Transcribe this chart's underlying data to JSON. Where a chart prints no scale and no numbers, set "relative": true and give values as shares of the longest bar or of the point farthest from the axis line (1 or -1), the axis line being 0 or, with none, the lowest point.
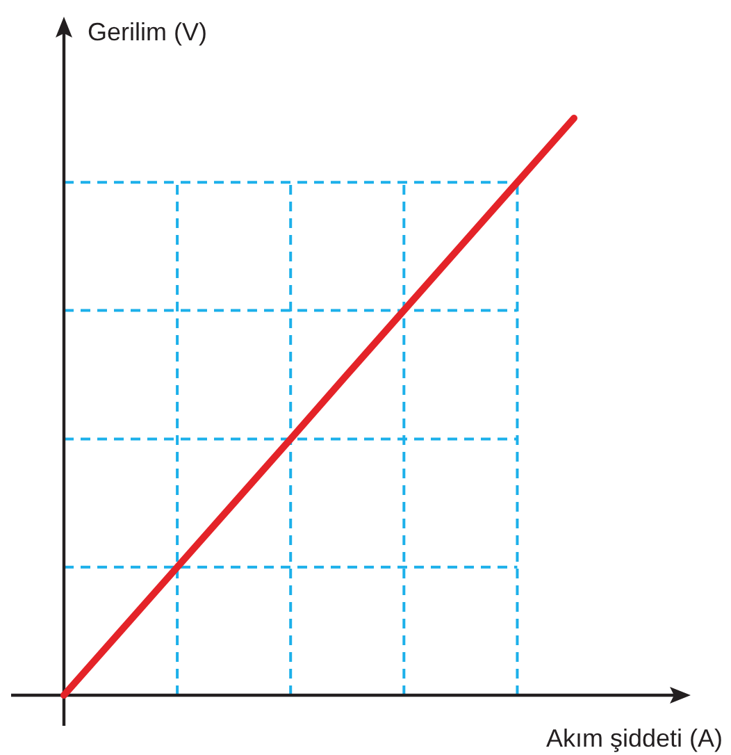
{
  "chart_data": {
    "type": "line",
    "relative": true,
    "xlabel": "Akım şiddeti (A)",
    "ylabel": "Gerilim (V)",
    "categories": [
      null,
      null,
      null,
      null,
      null,
      null,
      null,
      null,
      null,
      null
    ],
    "series": [
      {
        "color": "#e42328",
        "values": [
          0,
          0.111,
          0.222,
          0.333,
          0.444,
          0.556,
          0.667,
          0.778,
          0.889,
          1
        ]
      }
    ],
    "ref_lines": [
      {
        "axis": "y",
        "value": 0.222,
        "color": "#1cb0ea",
        "line_style": "dashed"
      },
      {
        "axis": "y",
        "value": 0.444,
        "color": "#1cb0ea",
        "line_style": "dashed"
      },
      {
        "axis": "y",
        "value": 0.667,
        "color": "#1cb0ea",
        "line_style": "dashed"
      },
      {
        "axis": "y",
        "value": 0.889,
        "color": "#1cb0ea",
        "line_style": "dashed"
      }
    ],
    "grid": "x"
  }
}
